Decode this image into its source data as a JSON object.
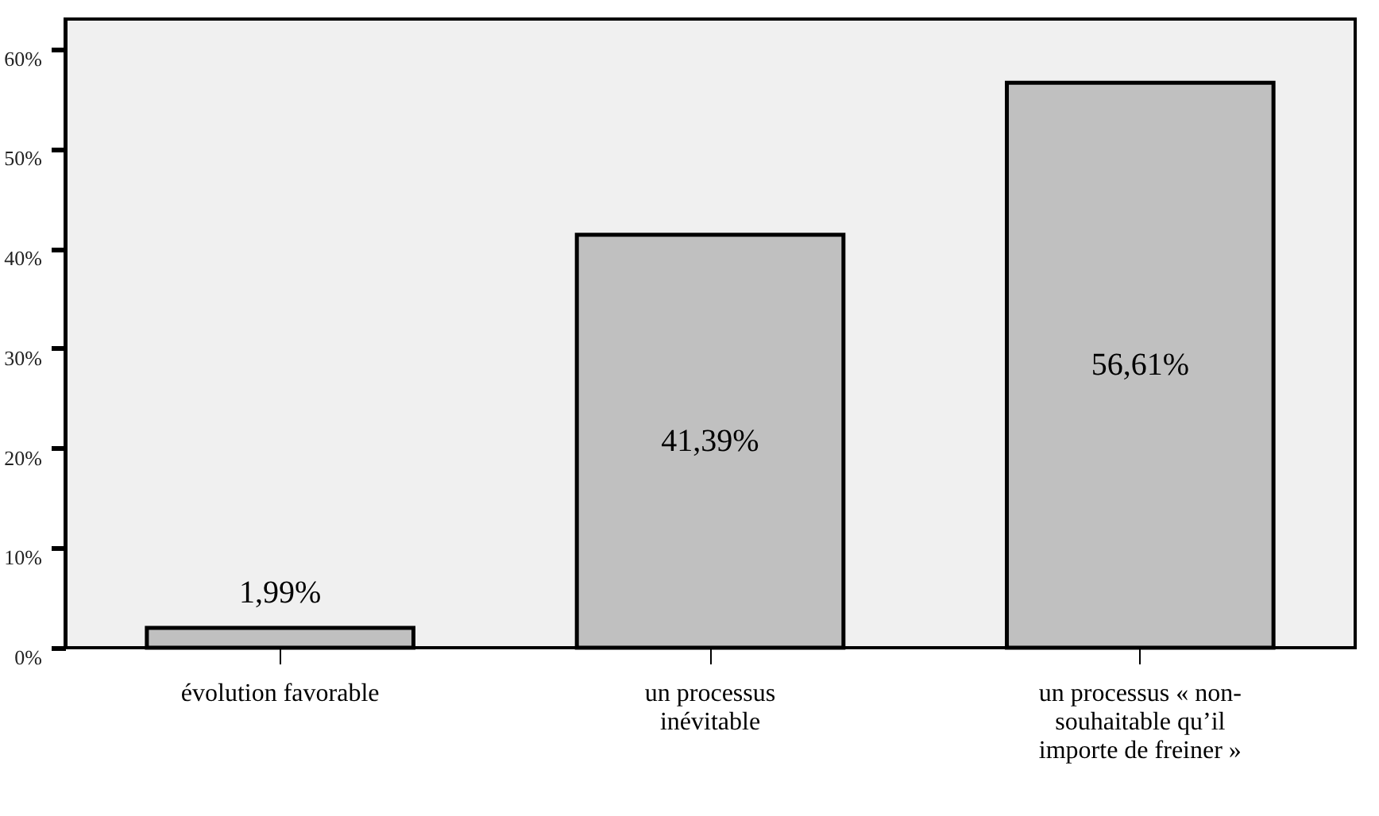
{
  "chart_data": {
    "type": "bar",
    "categories": [
      "évolution favorable",
      "un processus inévitable",
      "un processus « non-souhaitable qu’il importe de freiner »"
    ],
    "values": [
      1.99,
      41.39,
      56.61
    ],
    "value_labels": [
      "1,99%",
      "41,39%",
      "56,61%"
    ],
    "color": "#c0c0c0",
    "ylim": [
      0,
      63
    ],
    "yticks": [
      {
        "value": 0,
        "label": "0%"
      },
      {
        "value": 10,
        "label": "10%"
      },
      {
        "value": 20,
        "label": "20%"
      },
      {
        "value": 30,
        "label": "30%"
      },
      {
        "value": 40,
        "label": "40%"
      },
      {
        "value": 50,
        "label": "50%"
      },
      {
        "value": 60,
        "label": "60%"
      }
    ],
    "grid": false
  }
}
